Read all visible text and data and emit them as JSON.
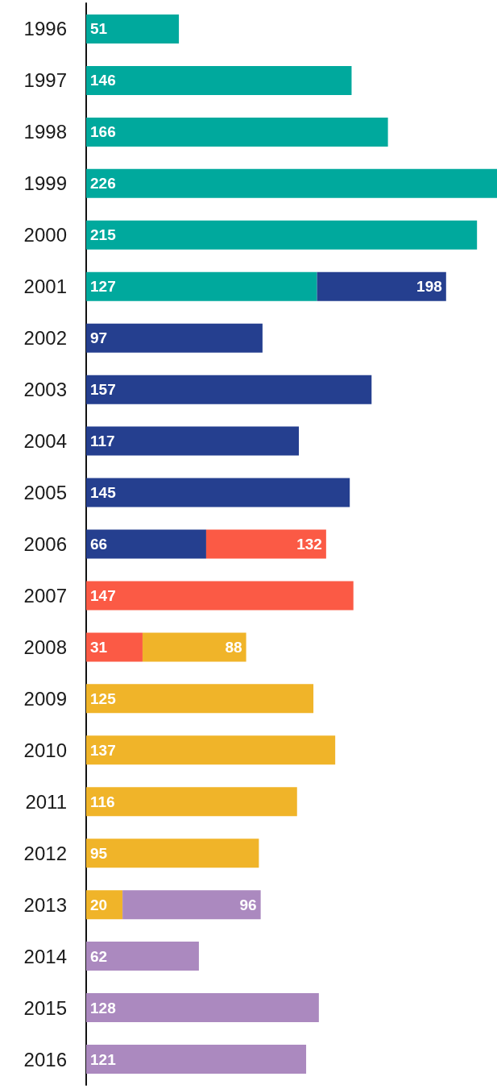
{
  "chart_data": {
    "type": "bar",
    "orientation": "horizontal",
    "stacked": true,
    "categories": [
      "1996",
      "1997",
      "1998",
      "1999",
      "2000",
      "2001",
      "2002",
      "2003",
      "2004",
      "2005",
      "2006",
      "2007",
      "2008",
      "2009",
      "2010",
      "2011",
      "2012",
      "2013",
      "2014",
      "2015",
      "2016"
    ],
    "series": [
      {
        "color": "#00a99d",
        "values": [
          51,
          146,
          166,
          226,
          215,
          127,
          null,
          null,
          null,
          null,
          null,
          null,
          null,
          null,
          null,
          null,
          null,
          null,
          null,
          null,
          null
        ],
        "value_labels": [
          "51",
          "146",
          "166",
          "226",
          "215",
          "127",
          null,
          null,
          null,
          null,
          null,
          null,
          null,
          null,
          null,
          null,
          null,
          null,
          null,
          null,
          null
        ]
      },
      {
        "color": "#253f8f",
        "values": [
          null,
          null,
          null,
          null,
          null,
          71,
          97,
          157,
          117,
          145,
          66,
          null,
          null,
          null,
          null,
          null,
          null,
          null,
          null,
          null,
          null
        ],
        "value_labels": [
          null,
          null,
          null,
          null,
          null,
          null,
          "97",
          "157",
          "117",
          "145",
          "66",
          null,
          null,
          null,
          null,
          null,
          null,
          null,
          null,
          null,
          null
        ]
      },
      {
        "color": "#fb5a45",
        "values": [
          null,
          null,
          null,
          null,
          null,
          null,
          null,
          null,
          null,
          null,
          66,
          147,
          31,
          null,
          null,
          null,
          null,
          null,
          null,
          null,
          null
        ],
        "value_labels": [
          null,
          null,
          null,
          null,
          null,
          null,
          null,
          null,
          null,
          null,
          null,
          "147",
          "31",
          null,
          null,
          null,
          null,
          null,
          null,
          null,
          null
        ]
      },
      {
        "color": "#f0b429",
        "values": [
          null,
          null,
          null,
          null,
          null,
          null,
          null,
          null,
          null,
          null,
          null,
          null,
          57,
          125,
          137,
          116,
          95,
          20,
          null,
          null,
          null
        ],
        "value_labels": [
          null,
          null,
          null,
          null,
          null,
          null,
          null,
          null,
          null,
          null,
          null,
          null,
          null,
          "125",
          "137",
          "116",
          "95",
          "20",
          null,
          null,
          null
        ]
      },
      {
        "color": "#ab89bf",
        "values": [
          null,
          null,
          null,
          null,
          null,
          null,
          null,
          null,
          null,
          null,
          null,
          null,
          null,
          null,
          null,
          null,
          null,
          76,
          62,
          128,
          121
        ],
        "value_labels": [
          null,
          null,
          null,
          null,
          null,
          null,
          null,
          null,
          null,
          null,
          null,
          null,
          null,
          null,
          null,
          null,
          null,
          null,
          "62",
          "128",
          "121"
        ]
      }
    ],
    "totals": [
      null,
      null,
      null,
      null,
      null,
      "198",
      null,
      null,
      null,
      null,
      "132",
      null,
      "88",
      null,
      null,
      null,
      null,
      "96",
      null,
      null,
      null
    ],
    "tick_labels": "y"
  }
}
